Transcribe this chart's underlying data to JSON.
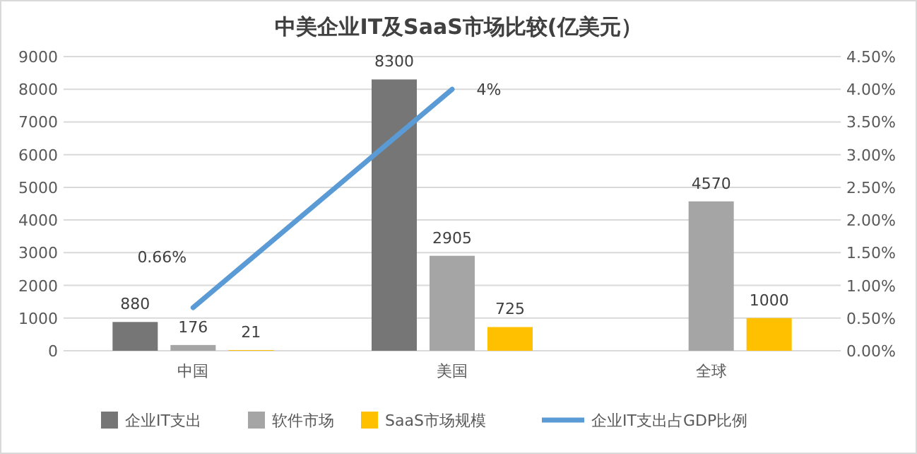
{
  "chart_data": {
    "type": "bar",
    "title": "中美企业IT及SaaS市场比较(亿美元）",
    "categories": [
      "中国",
      "美国",
      "全球"
    ],
    "series": [
      {
        "name": "企业IT支出",
        "color": "#767676",
        "values": [
          880,
          8300,
          null
        ],
        "value_labels": [
          "880",
          "8300",
          null
        ]
      },
      {
        "name": "软件市场",
        "color": "#a5a5a5",
        "values": [
          176,
          2905,
          4570
        ],
        "value_labels": [
          "176",
          "2905",
          "4570"
        ]
      },
      {
        "name": "SaaS市场规模",
        "color": "#ffc000",
        "values": [
          21,
          725,
          1000
        ],
        "value_labels": [
          "21",
          "725",
          "1000"
        ]
      },
      {
        "name": "企业IT支出占GDP比例",
        "type": "line",
        "axis": "y2",
        "color": "#5b9bd5",
        "values": [
          0.66,
          4,
          null
        ],
        "value_labels": [
          "0.66%",
          "4%",
          null
        ]
      }
    ],
    "ylim": [
      0,
      9000
    ],
    "yticks": [
      0,
      1000,
      2000,
      3000,
      4000,
      5000,
      6000,
      7000,
      8000,
      9000
    ],
    "y2lim": [
      0,
      4.5
    ],
    "y2ticks": [
      {
        "value": 0,
        "label": "0.00%"
      },
      {
        "value": 0.5,
        "label": "0.50%"
      },
      {
        "value": 1,
        "label": "1.00%"
      },
      {
        "value": 1.5,
        "label": "1.50%"
      },
      {
        "value": 2,
        "label": "2.00%"
      },
      {
        "value": 2.5,
        "label": "2.50%"
      },
      {
        "value": 3,
        "label": "3.00%"
      },
      {
        "value": 3.5,
        "label": "3.50%"
      },
      {
        "value": 4,
        "label": "4.00%"
      },
      {
        "value": 4.5,
        "label": "4.50%"
      }
    ],
    "grid": "y",
    "legend": "bottom"
  }
}
